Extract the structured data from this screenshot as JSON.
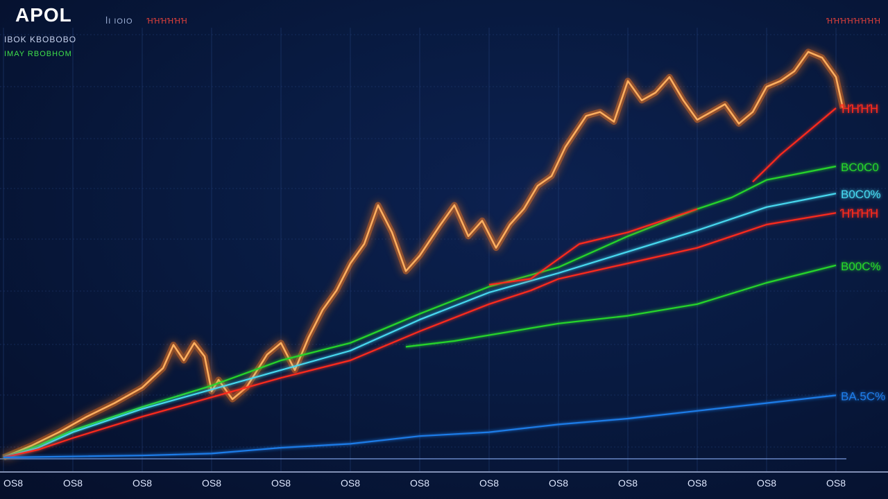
{
  "header": {
    "ticker": "APOL",
    "subtitle_left": "ꟾI IOIO",
    "subtitle_mid": "ꞪꞪꞪꞪꞪꞪ",
    "subtitle_right": "ꞪꞪꞪꞪꞪꞪꞪꞪ",
    "line_a": "IBOK KBOBOBO",
    "line_b": "IMAY RBOBHOM"
  },
  "colors": {
    "background": "#081a40",
    "grid": "#23407a",
    "price": "#ffb060",
    "price_glow": "#ff7a1a",
    "red": "#ff2a1e",
    "green": "#28d62c",
    "cyan": "#47d9f0",
    "blue": "#1f7ce8"
  },
  "chart_data": {
    "type": "line",
    "title": "APOL",
    "x_tick_labels": [
      "OS8",
      "OS8",
      "OS8",
      "OS8",
      "OS8",
      "OS8",
      "OS8",
      "OS8",
      "OS8",
      "OS8",
      "OS8",
      "OS8",
      "OS8"
    ],
    "x": [
      0,
      1,
      2,
      3,
      4,
      5,
      6,
      7,
      8,
      9,
      10,
      11,
      12
    ],
    "ylim": [
      0,
      100
    ],
    "grid": true,
    "series": [
      {
        "key": "price",
        "color": "#ffb060",
        "glow": true,
        "points": [
          [
            0.0,
            0.0
          ],
          [
            0.4,
            3.0
          ],
          [
            0.8,
            6.5
          ],
          [
            1.2,
            10.5
          ],
          [
            1.6,
            14.0
          ],
          [
            2.0,
            18.0
          ],
          [
            2.3,
            23.0
          ],
          [
            2.45,
            29.0
          ],
          [
            2.6,
            25.0
          ],
          [
            2.75,
            29.5
          ],
          [
            2.9,
            26.0
          ],
          [
            3.0,
            17.0
          ],
          [
            3.1,
            20.0
          ],
          [
            3.3,
            15.0
          ],
          [
            3.5,
            18.0
          ],
          [
            3.8,
            26.5
          ],
          [
            4.0,
            29.5
          ],
          [
            4.2,
            22.5
          ],
          [
            4.4,
            31.0
          ],
          [
            4.6,
            38.0
          ],
          [
            4.8,
            43.0
          ],
          [
            5.0,
            50.0
          ],
          [
            5.2,
            55.0
          ],
          [
            5.4,
            65.0
          ],
          [
            5.6,
            58.0
          ],
          [
            5.8,
            48.0
          ],
          [
            6.0,
            52.0
          ],
          [
            6.3,
            60.0
          ],
          [
            6.5,
            65.0
          ],
          [
            6.7,
            57.0
          ],
          [
            6.9,
            61.0
          ],
          [
            7.1,
            54.0
          ],
          [
            7.3,
            60.0
          ],
          [
            7.5,
            64.0
          ],
          [
            7.7,
            70.0
          ],
          [
            7.9,
            72.5
          ],
          [
            8.1,
            80.0
          ],
          [
            8.4,
            88.0
          ],
          [
            8.6,
            89.0
          ],
          [
            8.8,
            86.5
          ],
          [
            9.0,
            97.0
          ],
          [
            9.2,
            92.0
          ],
          [
            9.4,
            94.0
          ],
          [
            9.6,
            98.0
          ],
          [
            9.8,
            92.0
          ],
          [
            10.0,
            87.0
          ],
          [
            10.2,
            89.0
          ],
          [
            10.4,
            91.0
          ],
          [
            10.6,
            86.0
          ],
          [
            10.8,
            89.0
          ],
          [
            11.0,
            95.5
          ],
          [
            11.2,
            97.0
          ],
          [
            11.4,
            99.5
          ],
          [
            11.6,
            104.5
          ],
          [
            11.8,
            103.0
          ],
          [
            12.0,
            98.0
          ],
          [
            12.1,
            90.0
          ]
        ]
      },
      {
        "key": "red-upper",
        "color": "#ff2a1e",
        "label": "ꞪꞪꞪꞪ",
        "points": [
          [
            10.8,
            71.0
          ],
          [
            11.2,
            78.0
          ],
          [
            11.6,
            84.0
          ],
          [
            12.0,
            90.0
          ]
        ]
      },
      {
        "key": "green-upper",
        "color": "#28d62c",
        "label": "BC0C0",
        "points": [
          [
            0.0,
            0.0
          ],
          [
            0.5,
            3.0
          ],
          [
            1.0,
            7.0
          ],
          [
            2.0,
            13.0
          ],
          [
            3.0,
            18.5
          ],
          [
            4.0,
            25.0
          ],
          [
            5.0,
            29.5
          ],
          [
            6.0,
            37.0
          ],
          [
            7.0,
            44.0
          ],
          [
            8.0,
            49.0
          ],
          [
            9.0,
            57.0
          ],
          [
            10.0,
            64.0
          ],
          [
            10.5,
            67.0
          ],
          [
            11.0,
            71.5
          ],
          [
            12.0,
            75.0
          ]
        ]
      },
      {
        "key": "cyan",
        "color": "#47d9f0",
        "label": "B0C0%",
        "points": [
          [
            0.0,
            0.0
          ],
          [
            0.5,
            2.5
          ],
          [
            1.0,
            6.5
          ],
          [
            2.0,
            12.5
          ],
          [
            3.0,
            17.5
          ],
          [
            4.0,
            22.5
          ],
          [
            5.0,
            27.5
          ],
          [
            6.0,
            35.5
          ],
          [
            7.0,
            42.5
          ],
          [
            8.0,
            47.5
          ],
          [
            9.0,
            53.0
          ],
          [
            10.0,
            58.5
          ],
          [
            11.0,
            64.5
          ],
          [
            12.0,
            68.0
          ]
        ]
      },
      {
        "key": "red-main",
        "color": "#ff2a1e",
        "label": "ꞪꞪꞪꞪ",
        "points": [
          [
            0.0,
            0.0
          ],
          [
            0.5,
            2.0
          ],
          [
            1.0,
            5.0
          ],
          [
            2.0,
            10.5
          ],
          [
            3.0,
            15.5
          ],
          [
            4.0,
            20.5
          ],
          [
            5.0,
            25.0
          ],
          [
            6.0,
            32.5
          ],
          [
            7.0,
            39.5
          ],
          [
            7.6,
            43.0
          ],
          [
            8.0,
            46.0
          ],
          [
            9.0,
            50.0
          ],
          [
            10.0,
            54.0
          ],
          [
            10.5,
            57.0
          ],
          [
            11.0,
            60.0
          ],
          [
            12.0,
            63.0
          ]
        ]
      },
      {
        "key": "red-mid",
        "color": "#ff2a1e",
        "points": [
          [
            7.0,
            44.5
          ],
          [
            7.6,
            46.0
          ],
          [
            8.3,
            55.0
          ],
          [
            9.0,
            58.0
          ],
          [
            10.0,
            64.0
          ]
        ]
      },
      {
        "key": "green-lower",
        "color": "#28d62c",
        "label": "B00C%",
        "points": [
          [
            5.8,
            28.5
          ],
          [
            6.5,
            30.0
          ],
          [
            7.0,
            31.5
          ],
          [
            8.0,
            34.5
          ],
          [
            9.0,
            36.5
          ],
          [
            10.0,
            39.5
          ],
          [
            11.0,
            45.0
          ],
          [
            12.0,
            49.5
          ]
        ]
      },
      {
        "key": "blue",
        "color": "#1f7ce8",
        "label": "BA.5C%",
        "points": [
          [
            0.0,
            0.0
          ],
          [
            2.0,
            0.5
          ],
          [
            3.0,
            1.0
          ],
          [
            4.0,
            2.5
          ],
          [
            5.0,
            3.5
          ],
          [
            6.0,
            5.5
          ],
          [
            7.0,
            6.5
          ],
          [
            8.0,
            8.5
          ],
          [
            9.0,
            10.0
          ],
          [
            10.0,
            12.0
          ],
          [
            11.0,
            14.0
          ],
          [
            12.0,
            16.0
          ]
        ]
      }
    ]
  }
}
